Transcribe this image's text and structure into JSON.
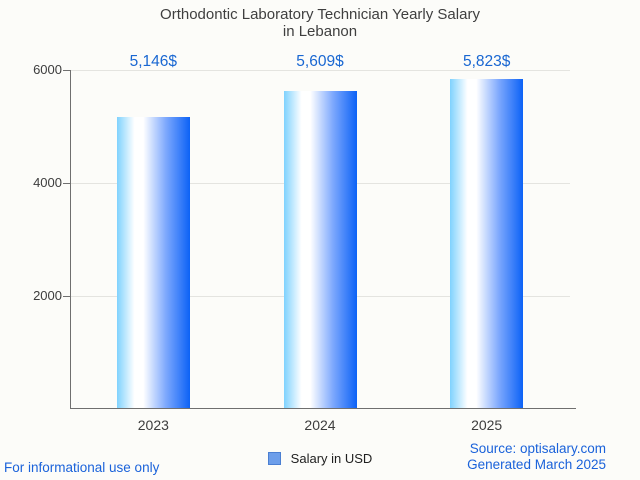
{
  "title": {
    "line1": "Orthodontic Laboratory Technician Yearly Salary",
    "line2": "in Lebanon"
  },
  "chart_data": {
    "type": "bar",
    "title": "Orthodontic Laboratory Technician Yearly Salary in Lebanon",
    "categories": [
      "2023",
      "2024",
      "2025"
    ],
    "values": [
      5146,
      5609,
      5823
    ],
    "value_labels": [
      "5,146$",
      "5,609$",
      "5,823$"
    ],
    "series_name": "Salary in USD",
    "xlabel": "",
    "ylabel": "",
    "ylim": [
      0,
      6000
    ],
    "yticks": [
      2000,
      4000,
      6000
    ],
    "grid": true,
    "legend_position": "bottom",
    "bar_gradient_stops": [
      "#7fd2fe",
      "#ffffff",
      "#ffffff",
      "#7aa6fd",
      "#0c62f6"
    ]
  },
  "legend": {
    "label": "Salary in USD",
    "swatch_color": "#6d9eea"
  },
  "footer": {
    "left": "For informational use only",
    "source": "Source: optisalary.com",
    "generated": "Generated March 2025"
  },
  "colors": {
    "background": "#fcfcf9",
    "title_text": "#3f3f3f",
    "axis_text": "#3d3d3d",
    "axis_line": "#6f6f6f",
    "gridline": "#e4e4e0",
    "value_label_blue": "#1967d2",
    "footer_blue": "#1a62da",
    "legend_swatch": "#6d9eea",
    "legend_swatch_border": "#4b7fd2"
  }
}
